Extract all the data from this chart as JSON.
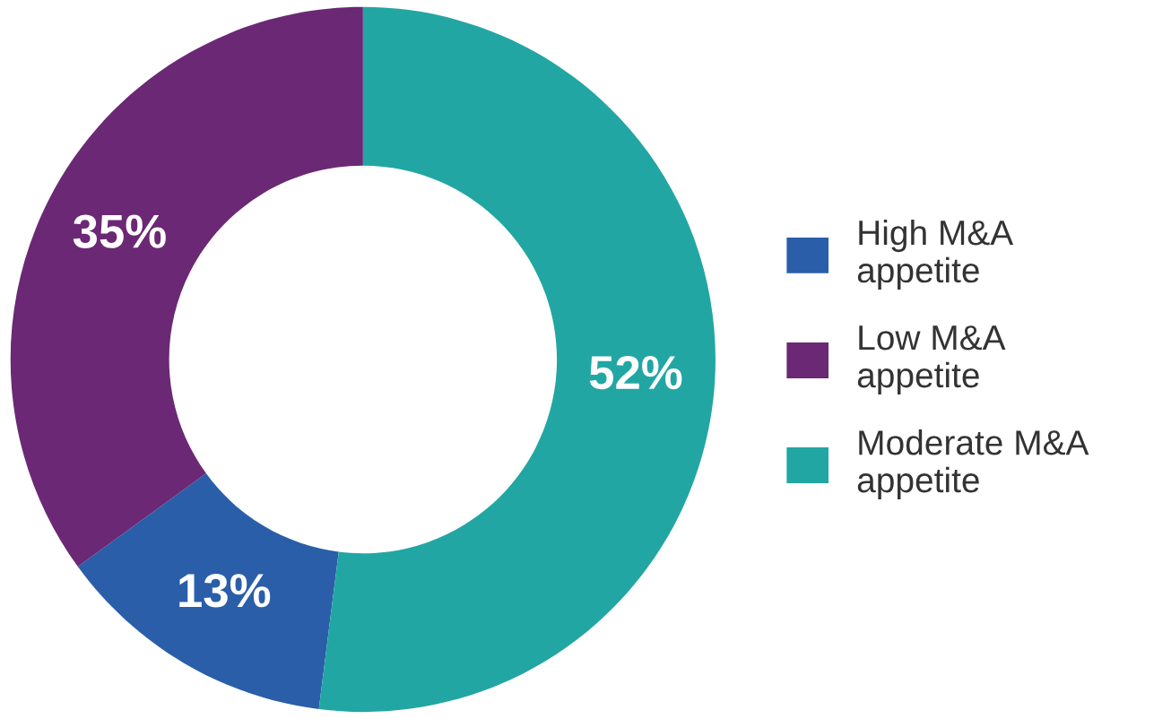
{
  "chart_data": {
    "type": "donut",
    "categories": [
      "High M&A\nappetite",
      "Low M&A\nappetite",
      "Moderate M&A\nappetite"
    ],
    "values": [
      13,
      35,
      52
    ],
    "colors": [
      "#2a5ea9",
      "#6b2874",
      "#22a6a3"
    ],
    "value_labels": [
      "13%",
      "35%",
      "52%"
    ],
    "legend": "right"
  }
}
